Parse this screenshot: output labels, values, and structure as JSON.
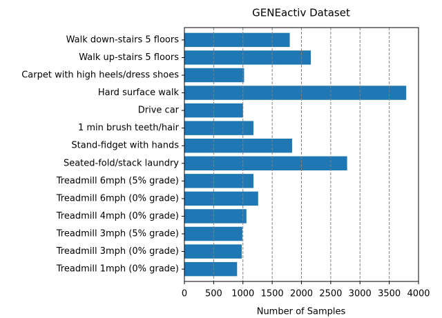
{
  "chart_data": {
    "type": "barh",
    "title": "GENEactiv Dataset",
    "xlabel": "Number of Samples",
    "categories": [
      "Walk down-stairs 5 floors",
      "Walk up-stairs 5 floors",
      "Carpet with high heels/dress shoes",
      "Hard surface walk",
      "Drive car",
      "1 min brush teeth/hair",
      "Stand-fidget with hands",
      "Seated-fold/stack laundry",
      "Treadmill 6mph (5% grade)",
      "Treadmill 6mph (0% grade)",
      "Treadmill 4mph (0% grade)",
      "Treadmill 3mph (5% grade)",
      "Treadmill 3mph (0% grade)",
      "Treadmill 1mph (0% grade)"
    ],
    "values": [
      1800,
      2160,
      1020,
      3790,
      1000,
      1180,
      1840,
      2780,
      1180,
      1260,
      1060,
      990,
      980,
      900
    ],
    "color": "#1f77b4",
    "xlim": [
      0,
      4000
    ],
    "xticks": [
      0,
      500,
      1000,
      1500,
      2000,
      2500,
      3000,
      3500,
      4000
    ],
    "grid": true
  }
}
